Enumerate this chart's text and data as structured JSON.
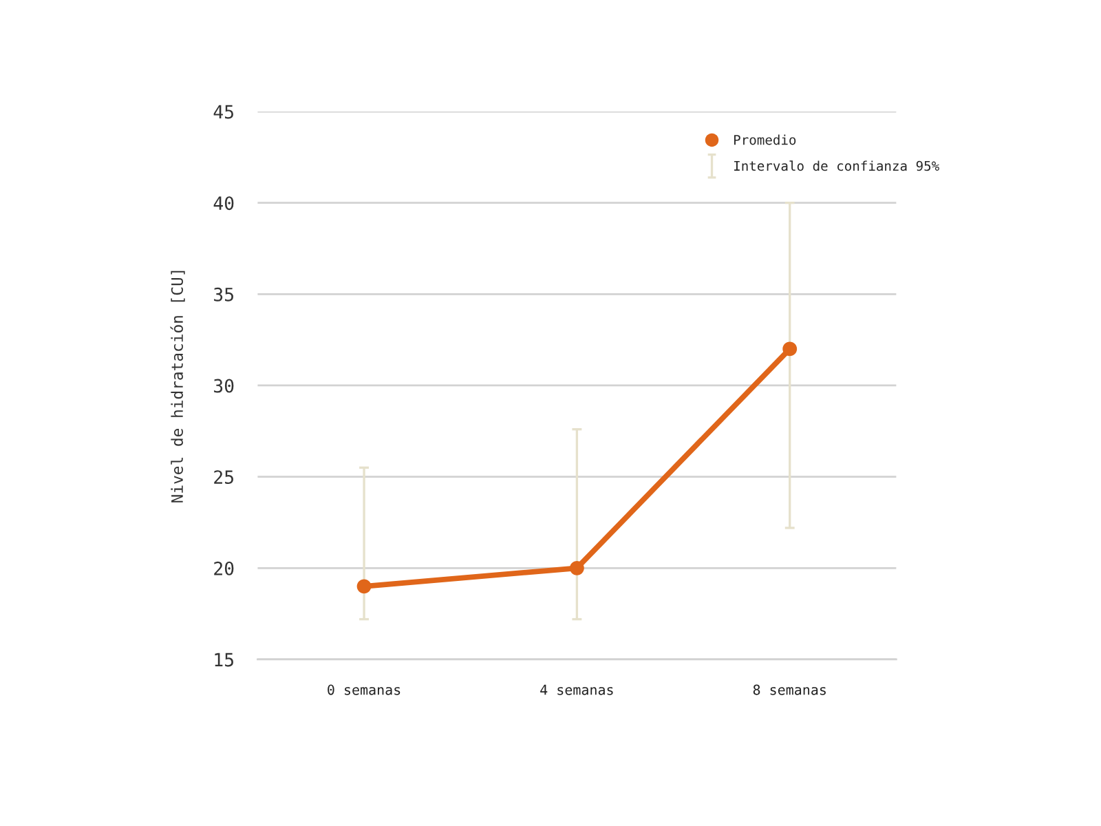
{
  "chart_data": {
    "type": "line",
    "ylabel": "Nivel de hidratación [CU]",
    "categories": [
      "0 semanas",
      "4 semanas",
      "8 semanas"
    ],
    "series": [
      {
        "name": "Promedio",
        "color": "#e0661a",
        "values": [
          19,
          20,
          32
        ],
        "errors": [
          [
            17.2,
            25.5
          ],
          [
            17.2,
            27.6
          ],
          [
            22.2,
            40.0
          ]
        ]
      }
    ],
    "annotations": [
      "Intervalo de confianza 95%"
    ],
    "ylim": [
      15,
      45
    ],
    "yticks": [
      15,
      20,
      25,
      30,
      35,
      40,
      45
    ],
    "grid": "y",
    "legend": "top right",
    "marker": "circle",
    "line_style": "solid"
  }
}
